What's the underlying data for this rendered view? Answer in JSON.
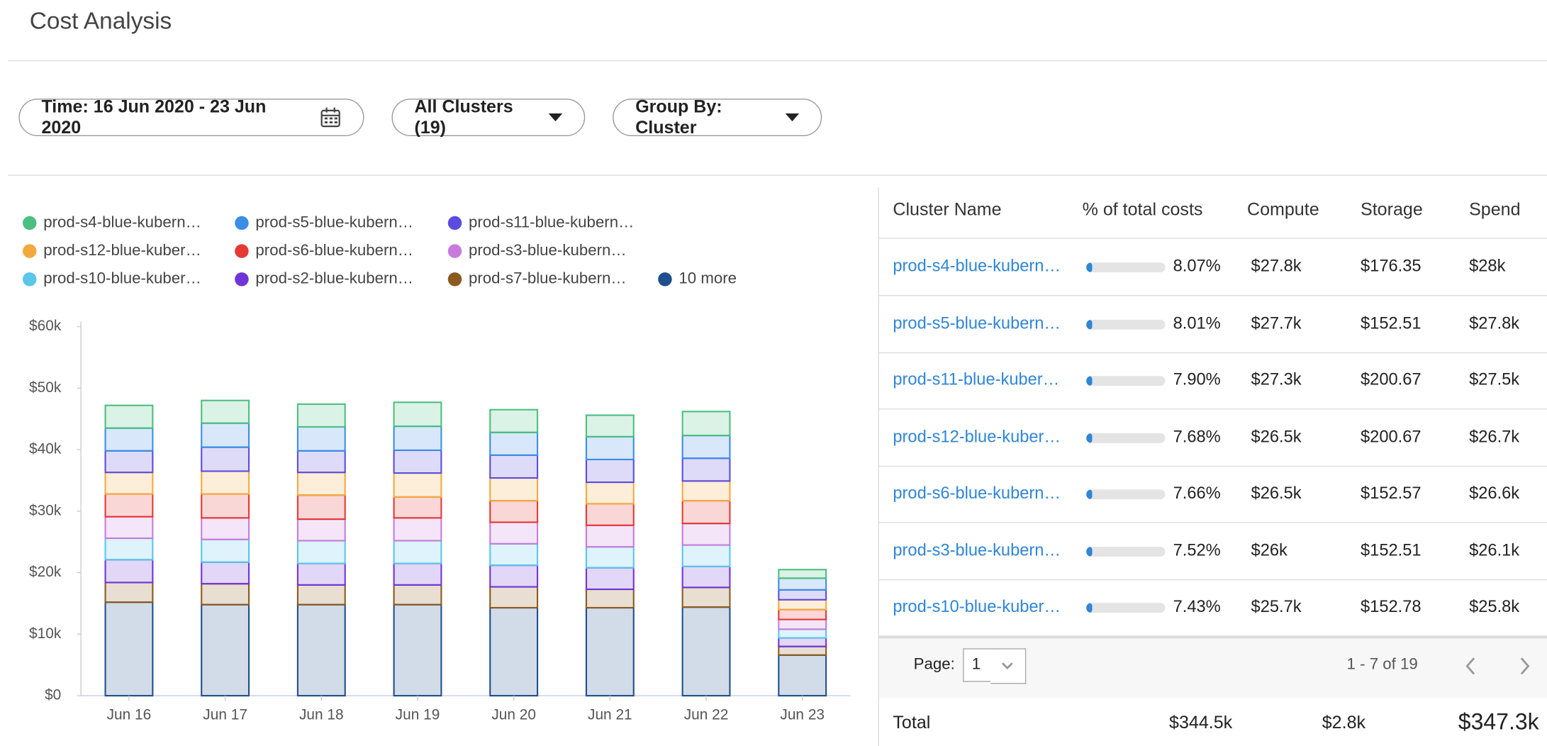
{
  "header": {
    "title": "Cost Analysis"
  },
  "filters": {
    "time": "Time: 16 Jun 2020 - 23 Jun 2020",
    "clusters": "All Clusters (19)",
    "group_by": "Group By: Cluster"
  },
  "chart_data": {
    "type": "bar",
    "stacked": true,
    "categories": [
      "Jun 16",
      "Jun 17",
      "Jun 18",
      "Jun 19",
      "Jun 20",
      "Jun 21",
      "Jun 22",
      "Jun 23"
    ],
    "ylim": [
      0,
      60000
    ],
    "yticks": [
      {
        "value": 0,
        "label": "$0"
      },
      {
        "value": 10000,
        "label": "$10k"
      },
      {
        "value": 20000,
        "label": "$20k"
      },
      {
        "value": 30000,
        "label": "$30k"
      },
      {
        "value": 40000,
        "label": "$40k"
      },
      {
        "value": 50000,
        "label": "$50k"
      },
      {
        "value": 60000,
        "label": "$60k"
      }
    ],
    "series": [
      {
        "name": "prod-s4-blue-kubern…",
        "color": "#4cbf80",
        "values": [
          3700,
          3700,
          3700,
          3900,
          3700,
          3500,
          3900,
          1400
        ]
      },
      {
        "name": "prod-s5-blue-kubern…",
        "color": "#3a8ee6",
        "values": [
          3700,
          3900,
          3900,
          3900,
          3700,
          3700,
          3700,
          1900
        ]
      },
      {
        "name": "prod-s11-blue-kubern…",
        "color": "#5b4ce0",
        "values": [
          3500,
          3900,
          3500,
          3700,
          3700,
          3700,
          3700,
          1600
        ]
      },
      {
        "name": "prod-s12-blue-kuber…",
        "color": "#f4a93f",
        "values": [
          3500,
          3700,
          3700,
          3900,
          3700,
          3500,
          3200,
          1600
        ]
      },
      {
        "name": "prod-s6-blue-kubern…",
        "color": "#e53935",
        "values": [
          3700,
          3900,
          3900,
          3400,
          3500,
          3500,
          3700,
          1600
        ]
      },
      {
        "name": "prod-s3-blue-kubern…",
        "color": "#c77bdc",
        "values": [
          3500,
          3500,
          3500,
          3700,
          3500,
          3500,
          3500,
          1600
        ]
      },
      {
        "name": "prod-s10-blue-kuber…",
        "color": "#5bc5ea",
        "values": [
          3500,
          3700,
          3700,
          3700,
          3500,
          3400,
          3500,
          1400
        ]
      },
      {
        "name": "prod-s2-blue-kubern…",
        "color": "#6f35d9",
        "values": [
          3700,
          3500,
          3500,
          3500,
          3500,
          3500,
          3400,
          1400
        ]
      },
      {
        "name": "prod-s7-blue-kubern…",
        "color": "#8b5a1e",
        "values": [
          3200,
          3400,
          3200,
          3200,
          3400,
          3000,
          3200,
          1400
        ]
      },
      {
        "name": "10 more",
        "color": "#1f4f8c",
        "values": [
          15200,
          14800,
          14800,
          14800,
          14300,
          14300,
          14400,
          6600
        ]
      }
    ]
  },
  "table": {
    "headers": [
      "Cluster Name",
      "% of total costs",
      "Compute",
      "Storage",
      "Spend"
    ],
    "rows": [
      {
        "name": "prod-s4-blue-kubern…",
        "pct": {
          "value": 8.07,
          "label": "8.07%"
        },
        "compute": "$27.8k",
        "storage": "$176.35",
        "spend": "$28k"
      },
      {
        "name": "prod-s5-blue-kubern…",
        "pct": {
          "value": 8.01,
          "label": "8.01%"
        },
        "compute": "$27.7k",
        "storage": "$152.51",
        "spend": "$27.8k"
      },
      {
        "name": "prod-s11-blue-kuber…",
        "pct": {
          "value": 7.9,
          "label": "7.90%"
        },
        "compute": "$27.3k",
        "storage": "$200.67",
        "spend": "$27.5k"
      },
      {
        "name": "prod-s12-blue-kuber…",
        "pct": {
          "value": 7.68,
          "label": "7.68%"
        },
        "compute": "$26.5k",
        "storage": "$200.67",
        "spend": "$26.7k"
      },
      {
        "name": "prod-s6-blue-kubern…",
        "pct": {
          "value": 7.66,
          "label": "7.66%"
        },
        "compute": "$26.5k",
        "storage": "$152.57",
        "spend": "$26.6k"
      },
      {
        "name": "prod-s3-blue-kubern…",
        "pct": {
          "value": 7.52,
          "label": "7.52%"
        },
        "compute": "$26k",
        "storage": "$152.51",
        "spend": "$26.1k"
      },
      {
        "name": "prod-s10-blue-kuber…",
        "pct": {
          "value": 7.43,
          "label": "7.43%"
        },
        "compute": "$25.7k",
        "storage": "$152.78",
        "spend": "$25.8k"
      }
    ]
  },
  "pagination": {
    "label": "Page:",
    "page": "1",
    "range": "1 - 7 of 19"
  },
  "totals": {
    "label": "Total",
    "compute": "$344.5k",
    "storage": "$2.8k",
    "spend": "$347.3k"
  }
}
